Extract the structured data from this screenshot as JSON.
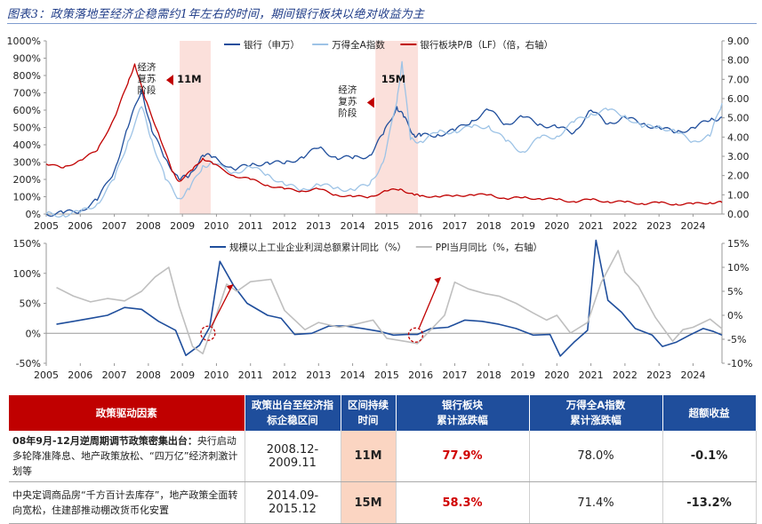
{
  "title": "图表3：政策落地至经济企稳需约1年左右的时间，期间银行板块以绝对收益为主",
  "chart_data": [
    {
      "type": "line",
      "title": "",
      "x_ticks": [
        "2005",
        "2006",
        "2007",
        "2008",
        "2009",
        "2010",
        "2011",
        "2012",
        "2013",
        "2014",
        "2015",
        "2016",
        "2017",
        "2018",
        "2019",
        "2020",
        "2021",
        "2022",
        "2023",
        "2024"
      ],
      "x_range": [
        2005.0,
        2024.85
      ],
      "ylim": [
        0,
        1000
      ],
      "y_ticks": [
        "0%",
        "100%",
        "200%",
        "300%",
        "400%",
        "500%",
        "600%",
        "700%",
        "800%",
        "900%",
        "1000%"
      ],
      "y2lim": [
        0,
        9
      ],
      "y2_ticks": [
        "0.00",
        "1.00",
        "2.00",
        "3.00",
        "4.00",
        "5.00",
        "6.00",
        "7.00",
        "8.00",
        "9.00"
      ],
      "legend": [
        "银行（申万）",
        "万得全A指数",
        "银行板块P/B（LF）（倍，右轴）"
      ],
      "colors": [
        "#1f4e9c",
        "#9dc3e6",
        "#c00000"
      ],
      "series": [
        {
          "name": "银行（申万）",
          "axis": "left",
          "points": [
            [
              2005.0,
              0
            ],
            [
              2005.5,
              5
            ],
            [
              2006.0,
              20
            ],
            [
              2006.5,
              80
            ],
            [
              2007.0,
              250
            ],
            [
              2007.4,
              500
            ],
            [
              2007.8,
              720
            ],
            [
              2008.1,
              480
            ],
            [
              2008.5,
              320
            ],
            [
              2008.9,
              200
            ],
            [
              2009.2,
              220
            ],
            [
              2009.6,
              340
            ],
            [
              2009.9,
              330
            ],
            [
              2010.5,
              260
            ],
            [
              2011.0,
              280
            ],
            [
              2011.5,
              300
            ],
            [
              2012.0,
              290
            ],
            [
              2012.5,
              330
            ],
            [
              2013.0,
              380
            ],
            [
              2013.5,
              330
            ],
            [
              2014.0,
              320
            ],
            [
              2014.5,
              340
            ],
            [
              2014.9,
              460
            ],
            [
              2015.3,
              620
            ],
            [
              2015.5,
              560
            ],
            [
              2015.8,
              460
            ],
            [
              2016.0,
              450
            ],
            [
              2016.5,
              460
            ],
            [
              2017.0,
              480
            ],
            [
              2017.5,
              540
            ],
            [
              2018.0,
              600
            ],
            [
              2018.5,
              520
            ],
            [
              2019.0,
              560
            ],
            [
              2019.5,
              520
            ],
            [
              2020.0,
              500
            ],
            [
              2020.5,
              470
            ],
            [
              2021.0,
              600
            ],
            [
              2021.5,
              520
            ],
            [
              2022.0,
              560
            ],
            [
              2022.5,
              520
            ],
            [
              2023.0,
              500
            ],
            [
              2023.5,
              470
            ],
            [
              2024.0,
              500
            ],
            [
              2024.5,
              540
            ],
            [
              2024.85,
              560
            ]
          ]
        },
        {
          "name": "万得全A指数",
          "axis": "left",
          "points": [
            [
              2005.0,
              0
            ],
            [
              2005.5,
              -5
            ],
            [
              2006.0,
              10
            ],
            [
              2006.5,
              60
            ],
            [
              2007.0,
              200
            ],
            [
              2007.4,
              420
            ],
            [
              2007.8,
              620
            ],
            [
              2008.1,
              430
            ],
            [
              2008.5,
              200
            ],
            [
              2008.9,
              90
            ],
            [
              2009.2,
              140
            ],
            [
              2009.6,
              280
            ],
            [
              2009.9,
              290
            ],
            [
              2010.5,
              240
            ],
            [
              2011.0,
              270
            ],
            [
              2011.5,
              230
            ],
            [
              2012.0,
              170
            ],
            [
              2012.5,
              140
            ],
            [
              2013.0,
              170
            ],
            [
              2013.5,
              150
            ],
            [
              2014.0,
              140
            ],
            [
              2014.5,
              170
            ],
            [
              2014.9,
              300
            ],
            [
              2015.3,
              650
            ],
            [
              2015.45,
              880
            ],
            [
              2015.7,
              430
            ],
            [
              2016.0,
              420
            ],
            [
              2016.5,
              470
            ],
            [
              2017.0,
              480
            ],
            [
              2017.5,
              500
            ],
            [
              2018.0,
              510
            ],
            [
              2018.5,
              420
            ],
            [
              2019.0,
              360
            ],
            [
              2019.5,
              440
            ],
            [
              2020.0,
              450
            ],
            [
              2020.5,
              530
            ],
            [
              2021.0,
              580
            ],
            [
              2021.5,
              600
            ],
            [
              2022.0,
              570
            ],
            [
              2022.5,
              500
            ],
            [
              2023.0,
              510
            ],
            [
              2023.5,
              470
            ],
            [
              2024.0,
              420
            ],
            [
              2024.5,
              450
            ],
            [
              2024.85,
              640
            ]
          ]
        },
        {
          "name": "银行板块P/B（LF）（倍，右轴）",
          "axis": "right",
          "points": [
            [
              2005.0,
              2.6
            ],
            [
              2005.5,
              2.4
            ],
            [
              2006.0,
              2.8
            ],
            [
              2006.5,
              3.3
            ],
            [
              2007.0,
              5.0
            ],
            [
              2007.4,
              6.8
            ],
            [
              2007.6,
              7.8
            ],
            [
              2007.9,
              6.0
            ],
            [
              2008.3,
              4.2
            ],
            [
              2008.7,
              2.2
            ],
            [
              2008.9,
              1.7
            ],
            [
              2009.3,
              2.3
            ],
            [
              2009.6,
              2.9
            ],
            [
              2009.9,
              2.6
            ],
            [
              2010.5,
              2.0
            ],
            [
              2011.0,
              1.8
            ],
            [
              2011.5,
              1.5
            ],
            [
              2012.0,
              1.3
            ],
            [
              2012.5,
              1.2
            ],
            [
              2013.0,
              1.3
            ],
            [
              2013.5,
              1.0
            ],
            [
              2014.0,
              0.9
            ],
            [
              2014.5,
              0.9
            ],
            [
              2015.0,
              1.2
            ],
            [
              2015.4,
              1.3
            ],
            [
              2015.8,
              1.0
            ],
            [
              2016.0,
              0.95
            ],
            [
              2016.5,
              0.9
            ],
            [
              2017.0,
              0.95
            ],
            [
              2017.5,
              1.0
            ],
            [
              2018.0,
              1.0
            ],
            [
              2018.5,
              0.8
            ],
            [
              2019.0,
              0.85
            ],
            [
              2019.5,
              0.8
            ],
            [
              2020.0,
              0.75
            ],
            [
              2020.5,
              0.65
            ],
            [
              2021.0,
              0.75
            ],
            [
              2021.5,
              0.65
            ],
            [
              2022.0,
              0.62
            ],
            [
              2022.5,
              0.55
            ],
            [
              2023.0,
              0.58
            ],
            [
              2023.5,
              0.52
            ],
            [
              2024.0,
              0.52
            ],
            [
              2024.5,
              0.6
            ],
            [
              2024.85,
              0.6
            ]
          ]
        }
      ],
      "annotations": [
        {
          "text": "经济复苏阶段",
          "x": 2007.95,
          "y": 830
        },
        {
          "text": "11M",
          "x": 2009.2,
          "y": 760
        },
        {
          "text": "经济复苏阶段",
          "x": 2013.85,
          "y": 700
        },
        {
          "text": "15M",
          "x": 2015.2,
          "y": 760
        }
      ],
      "shaded_periods": [
        [
          2008.92,
          2009.83
        ],
        [
          2014.67,
          2015.92
        ]
      ]
    },
    {
      "type": "line",
      "title": "",
      "x_ticks": [
        "2005",
        "2006",
        "2007",
        "2008",
        "2009",
        "2010",
        "2011",
        "2012",
        "2013",
        "2014",
        "2015",
        "2016",
        "2017",
        "2018",
        "2019",
        "2020",
        "2021",
        "2022",
        "2023",
        "2024"
      ],
      "x_range": [
        2005.0,
        2024.85
      ],
      "ylim": [
        -50,
        150
      ],
      "y_ticks": [
        "-50%",
        "0%",
        "50%",
        "100%",
        "150%"
      ],
      "y2lim": [
        -10,
        15
      ],
      "y2_ticks": [
        "-10%",
        "-5%",
        "0%",
        "5%",
        "10%",
        "15%"
      ],
      "legend": [
        "规模以上工业企业利润总额累计同比（%）",
        "PPI当月同比（%，右轴）"
      ],
      "colors": [
        "#1f4e9c",
        "#bfbfbf"
      ],
      "series": [
        {
          "name": "规模以上工业企业利润总额累计同比（%）",
          "axis": "left",
          "points": [
            [
              2005.3,
              15
            ],
            [
              2005.8,
              20
            ],
            [
              2006.3,
              25
            ],
            [
              2006.8,
              30
            ],
            [
              2007.3,
              43
            ],
            [
              2007.8,
              40
            ],
            [
              2008.3,
              20
            ],
            [
              2008.8,
              5
            ],
            [
              2009.1,
              -37
            ],
            [
              2009.5,
              -20
            ],
            [
              2009.8,
              10
            ],
            [
              2010.1,
              120
            ],
            [
              2010.5,
              80
            ],
            [
              2010.9,
              50
            ],
            [
              2011.5,
              30
            ],
            [
              2011.9,
              25
            ],
            [
              2012.3,
              -2
            ],
            [
              2012.8,
              0
            ],
            [
              2013.3,
              12
            ],
            [
              2013.8,
              12
            ],
            [
              2014.3,
              8
            ],
            [
              2014.8,
              3
            ],
            [
              2015.2,
              -3
            ],
            [
              2015.6,
              -2
            ],
            [
              2015.9,
              -2
            ],
            [
              2016.3,
              8
            ],
            [
              2016.8,
              10
            ],
            [
              2017.3,
              22
            ],
            [
              2017.8,
              20
            ],
            [
              2018.3,
              15
            ],
            [
              2018.8,
              8
            ],
            [
              2019.3,
              -3
            ],
            [
              2019.8,
              -2
            ],
            [
              2020.1,
              -38
            ],
            [
              2020.5,
              -15
            ],
            [
              2020.9,
              5
            ],
            [
              2021.15,
              155
            ],
            [
              2021.5,
              55
            ],
            [
              2021.9,
              35
            ],
            [
              2022.3,
              8
            ],
            [
              2022.8,
              -3
            ],
            [
              2023.1,
              -22
            ],
            [
              2023.5,
              -15
            ],
            [
              2023.9,
              -3
            ],
            [
              2024.3,
              8
            ],
            [
              2024.6,
              3
            ],
            [
              2024.85,
              -3
            ]
          ]
        },
        {
          "name": "PPI当月同比（%，右轴）",
          "axis": "right",
          "points": [
            [
              2005.3,
              5.8
            ],
            [
              2005.8,
              4.0
            ],
            [
              2006.3,
              2.8
            ],
            [
              2006.8,
              3.5
            ],
            [
              2007.3,
              3.0
            ],
            [
              2007.8,
              5.0
            ],
            [
              2008.2,
              8.0
            ],
            [
              2008.6,
              10.0
            ],
            [
              2008.9,
              2.0
            ],
            [
              2009.3,
              -6.5
            ],
            [
              2009.6,
              -8.0
            ],
            [
              2009.9,
              -2.0
            ],
            [
              2010.3,
              6.5
            ],
            [
              2010.6,
              5.0
            ],
            [
              2011.0,
              7.0
            ],
            [
              2011.6,
              7.5
            ],
            [
              2012.0,
              1.0
            ],
            [
              2012.6,
              -3.0
            ],
            [
              2013.0,
              -1.5
            ],
            [
              2013.6,
              -2.5
            ],
            [
              2014.0,
              -2.0
            ],
            [
              2014.6,
              -1.0
            ],
            [
              2015.0,
              -4.8
            ],
            [
              2015.6,
              -5.5
            ],
            [
              2015.9,
              -5.9
            ],
            [
              2016.3,
              -3.0
            ],
            [
              2016.7,
              0.0
            ],
            [
              2017.0,
              6.9
            ],
            [
              2017.4,
              5.5
            ],
            [
              2017.9,
              4.5
            ],
            [
              2018.3,
              4.0
            ],
            [
              2018.8,
              2.5
            ],
            [
              2019.3,
              0.5
            ],
            [
              2019.7,
              -1.0
            ],
            [
              2020.0,
              0.0
            ],
            [
              2020.4,
              -3.7
            ],
            [
              2020.9,
              -1.5
            ],
            [
              2021.3,
              6.8
            ],
            [
              2021.8,
              13.5
            ],
            [
              2022.0,
              9.0
            ],
            [
              2022.4,
              6.0
            ],
            [
              2022.9,
              -0.5
            ],
            [
              2023.4,
              -5.4
            ],
            [
              2023.7,
              -3.0
            ],
            [
              2024.0,
              -2.5
            ],
            [
              2024.5,
              -0.8
            ],
            [
              2024.85,
              -2.8
            ]
          ]
        }
      ]
    }
  ],
  "table": {
    "headers": [
      "政策驱动因素",
      "政策出台至经济指\n标企稳区间",
      "区间持续\n时间",
      "银行板块\n累计涨跌幅",
      "万得全A指数\n累计涨跌幅",
      "超额收益"
    ],
    "rows": [
      {
        "desc_bold": "08年9月-12月逆周期调节政策密集出台：",
        "desc_rest": "央行启动多轮降准降息、地产政策放松、“四万亿”经济刺激计划等",
        "range": "2008.12-2009.11",
        "duration": "11M",
        "bank": "77.9%",
        "wind": "78.0%",
        "excess": "-0.1%"
      },
      {
        "desc_bold": "",
        "desc_rest": "中央定调商品房“千方百计去库存”，地产政策全面转向宽松，住建部推动棚改货币化安置",
        "range": "2014.09-2015.12",
        "duration": "15M",
        "bank": "58.3%",
        "wind": "71.4%",
        "excess": "-13.2%"
      }
    ]
  }
}
